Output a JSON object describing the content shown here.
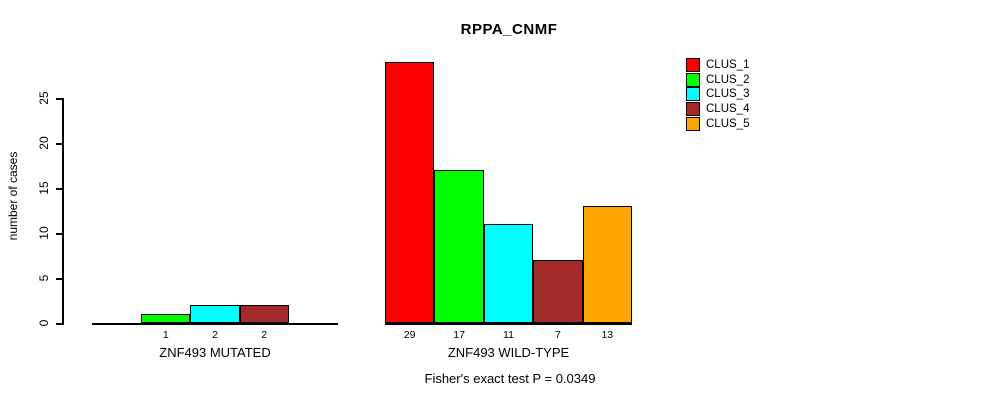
{
  "title": "RPPA_CNMF",
  "ylabel": "number of cases",
  "footer": "Fisher's exact test P = 0.0349",
  "chart_data": {
    "type": "bar",
    "title": "RPPA_CNMF",
    "xlabel": "",
    "ylabel": "number of cases",
    "ylim": [
      0,
      29
    ],
    "yticks": [
      0,
      5,
      10,
      15,
      20,
      25
    ],
    "grid": false,
    "legend_position": "top-right",
    "legend": [
      {
        "label": "CLUS_1",
        "color": "#FF0000"
      },
      {
        "label": "CLUS_2",
        "color": "#00FF00"
      },
      {
        "label": "CLUS_3",
        "color": "#00FFFF"
      },
      {
        "label": "CLUS_4",
        "color": "#A52A2A"
      },
      {
        "label": "CLUS_5",
        "color": "#FFA500"
      }
    ],
    "groups": [
      {
        "label": "ZNF493 MUTATED",
        "series": [
          "CLUS_1",
          "CLUS_2",
          "CLUS_3",
          "CLUS_4",
          "CLUS_5"
        ],
        "values": [
          0,
          1,
          2,
          2,
          0
        ]
      },
      {
        "label": "ZNF493 WILD-TYPE",
        "series": [
          "CLUS_1",
          "CLUS_2",
          "CLUS_3",
          "CLUS_4",
          "CLUS_5"
        ],
        "values": [
          29,
          17,
          11,
          7,
          13
        ]
      }
    ],
    "annotation": "Fisher's exact test P = 0.0349"
  }
}
